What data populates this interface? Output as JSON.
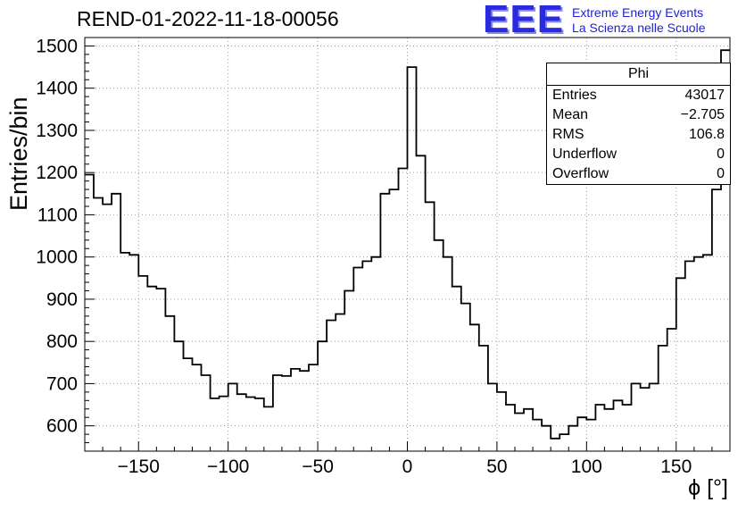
{
  "header": {
    "title": "REND-01-2022-11-18-00056",
    "logo": {
      "text": "EEE",
      "line1": "Extreme Energy Events",
      "line2": "La Scienza nelle Scuole",
      "color": "#2020cc"
    }
  },
  "stats": {
    "title": "Phi",
    "rows": [
      {
        "label": "Entries",
        "value": "43017"
      },
      {
        "label": "Mean",
        "value": "−2.705"
      },
      {
        "label": "RMS",
        "value": "106.8"
      },
      {
        "label": "Underflow",
        "value": "0"
      },
      {
        "label": "Overflow",
        "value": "0"
      }
    ]
  },
  "chart_data": {
    "type": "bar",
    "style": "step-histogram",
    "title": "REND-01-2022-11-18-00056",
    "xlabel": "ϕ [°]",
    "ylabel": "Entries/bin",
    "xlim": [
      -180,
      180
    ],
    "ylim": [
      540,
      1520
    ],
    "x_ticks": [
      -150,
      -100,
      -50,
      0,
      50,
      100,
      150
    ],
    "x_minor_step": 10,
    "y_ticks": [
      600,
      700,
      800,
      900,
      1000,
      1100,
      1200,
      1300,
      1400,
      1500
    ],
    "y_minor_step": 20,
    "grid": true,
    "grid_color": "#9a9a9a",
    "line_color": "#000000",
    "bin_start": -180,
    "bin_width": 5,
    "values": [
      1195,
      1140,
      1125,
      1150,
      1010,
      1005,
      955,
      930,
      925,
      860,
      800,
      760,
      745,
      720,
      665,
      670,
      700,
      675,
      668,
      665,
      645,
      720,
      718,
      735,
      730,
      745,
      800,
      850,
      865,
      920,
      975,
      990,
      1000,
      1150,
      1160,
      1210,
      1450,
      1240,
      1130,
      1040,
      1000,
      930,
      890,
      840,
      790,
      700,
      680,
      650,
      630,
      640,
      615,
      600,
      570,
      580,
      600,
      620,
      615,
      650,
      640,
      660,
      650,
      700,
      690,
      700,
      790,
      830,
      950,
      990,
      1000,
      1005,
      1160,
      1490
    ]
  }
}
